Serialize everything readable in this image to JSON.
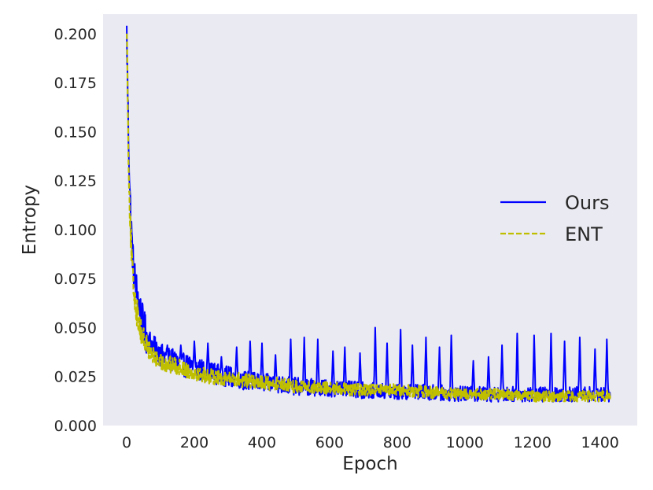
{
  "chart_data": {
    "type": "line",
    "title": "",
    "xlabel": "Epoch",
    "ylabel": "Entropy",
    "xlim": [
      -70,
      1510
    ],
    "ylim": [
      0.0,
      0.21
    ],
    "xticks": [
      0,
      200,
      400,
      600,
      800,
      1000,
      1200,
      1400
    ],
    "xtick_labels": [
      "0",
      "200",
      "400",
      "600",
      "800",
      "1000",
      "1200",
      "1400"
    ],
    "yticks": [
      0.0,
      0.025,
      0.05,
      0.075,
      0.1,
      0.125,
      0.15,
      0.175,
      0.2
    ],
    "ytick_labels": [
      "0.000",
      "0.025",
      "0.050",
      "0.075",
      "0.100",
      "0.125",
      "0.150",
      "0.175",
      "0.200"
    ],
    "grid": false,
    "background": "#eaeaf2",
    "legend_position": "center-right",
    "series": [
      {
        "name": "Ours",
        "color": "#0000ff",
        "style": "solid",
        "x": [
          0,
          5,
          10,
          15,
          20,
          30,
          40,
          50,
          60,
          80,
          100,
          150,
          200,
          250,
          300,
          350,
          400,
          500,
          600,
          700,
          800,
          900,
          1000,
          1100,
          1200,
          1300,
          1400,
          1430
        ],
        "y": [
          0.2,
          0.15,
          0.115,
          0.095,
          0.08,
          0.068,
          0.058,
          0.05,
          0.045,
          0.04,
          0.036,
          0.032,
          0.029,
          0.027,
          0.025,
          0.023,
          0.022,
          0.02,
          0.019,
          0.018,
          0.017,
          0.017,
          0.016,
          0.016,
          0.016,
          0.016,
          0.016,
          0.016
        ],
        "spikes": [
          [
            120,
            0.041
          ],
          [
            160,
            0.041
          ],
          [
            200,
            0.043
          ],
          [
            240,
            0.042
          ],
          [
            280,
            0.035
          ],
          [
            325,
            0.04
          ],
          [
            365,
            0.043
          ],
          [
            400,
            0.042
          ],
          [
            440,
            0.036
          ],
          [
            485,
            0.044
          ],
          [
            525,
            0.045
          ],
          [
            565,
            0.044
          ],
          [
            610,
            0.038
          ],
          [
            645,
            0.04
          ],
          [
            690,
            0.037
          ],
          [
            735,
            0.05
          ],
          [
            770,
            0.042
          ],
          [
            810,
            0.049
          ],
          [
            845,
            0.041
          ],
          [
            885,
            0.045
          ],
          [
            925,
            0.04
          ],
          [
            960,
            0.046
          ],
          [
            1025,
            0.033
          ],
          [
            1070,
            0.035
          ],
          [
            1110,
            0.041
          ],
          [
            1155,
            0.047
          ],
          [
            1205,
            0.046
          ],
          [
            1255,
            0.047
          ],
          [
            1295,
            0.043
          ],
          [
            1340,
            0.045
          ],
          [
            1385,
            0.039
          ],
          [
            1420,
            0.044
          ]
        ]
      },
      {
        "name": "ENT",
        "color": "#bfbf00",
        "style": "dashed",
        "x": [
          0,
          5,
          10,
          15,
          20,
          30,
          40,
          50,
          60,
          80,
          100,
          150,
          200,
          250,
          300,
          350,
          400,
          500,
          600,
          700,
          800,
          900,
          1000,
          1100,
          1200,
          1300,
          1400,
          1430
        ],
        "y": [
          0.207,
          0.14,
          0.105,
          0.085,
          0.07,
          0.058,
          0.05,
          0.044,
          0.04,
          0.035,
          0.032,
          0.03,
          0.027,
          0.025,
          0.024,
          0.023,
          0.022,
          0.02,
          0.019,
          0.018,
          0.018,
          0.017,
          0.016,
          0.016,
          0.015,
          0.015,
          0.015,
          0.015
        ]
      }
    ]
  }
}
